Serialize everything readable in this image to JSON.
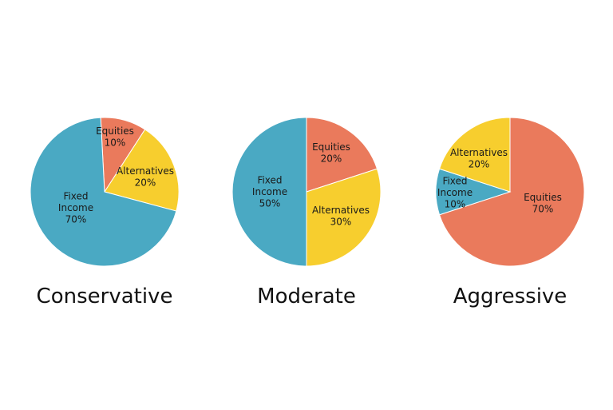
{
  "colors": {
    "equities": "#EA7A5C",
    "alternatives": "#F7CE2E",
    "fixed_income": "#4AA9C3"
  },
  "chart_data": [
    {
      "type": "pie",
      "title": "Conservative",
      "slices": [
        {
          "label": [
            "Equities",
            "10%"
          ],
          "value": 10,
          "color": "#EA7A5C"
        },
        {
          "label": [
            "Alternatives",
            "20%"
          ],
          "value": 20,
          "color": "#F7CE2E"
        },
        {
          "label": [
            "Fixed",
            "Income",
            "70%"
          ],
          "value": 70,
          "color": "#4AA9C3"
        }
      ]
    },
    {
      "type": "pie",
      "title": "Moderate",
      "slices": [
        {
          "label": [
            "Equities",
            "20%"
          ],
          "value": 20,
          "color": "#EA7A5C"
        },
        {
          "label": [
            "Alternatives",
            "30%"
          ],
          "value": 30,
          "color": "#F7CE2E"
        },
        {
          "label": [
            "Fixed",
            "Income",
            "50%"
          ],
          "value": 50,
          "color": "#4AA9C3"
        }
      ]
    },
    {
      "type": "pie",
      "title": "Aggressive",
      "slices": [
        {
          "label": [
            "Equities",
            "70%"
          ],
          "value": 70,
          "color": "#EA7A5C"
        },
        {
          "label": [
            "Fixed",
            "Income",
            "10%"
          ],
          "value": 10,
          "color": "#4AA9C3"
        },
        {
          "label": [
            "Alternatives",
            "20%"
          ],
          "value": 20,
          "color": "#F7CE2E"
        }
      ]
    }
  ]
}
